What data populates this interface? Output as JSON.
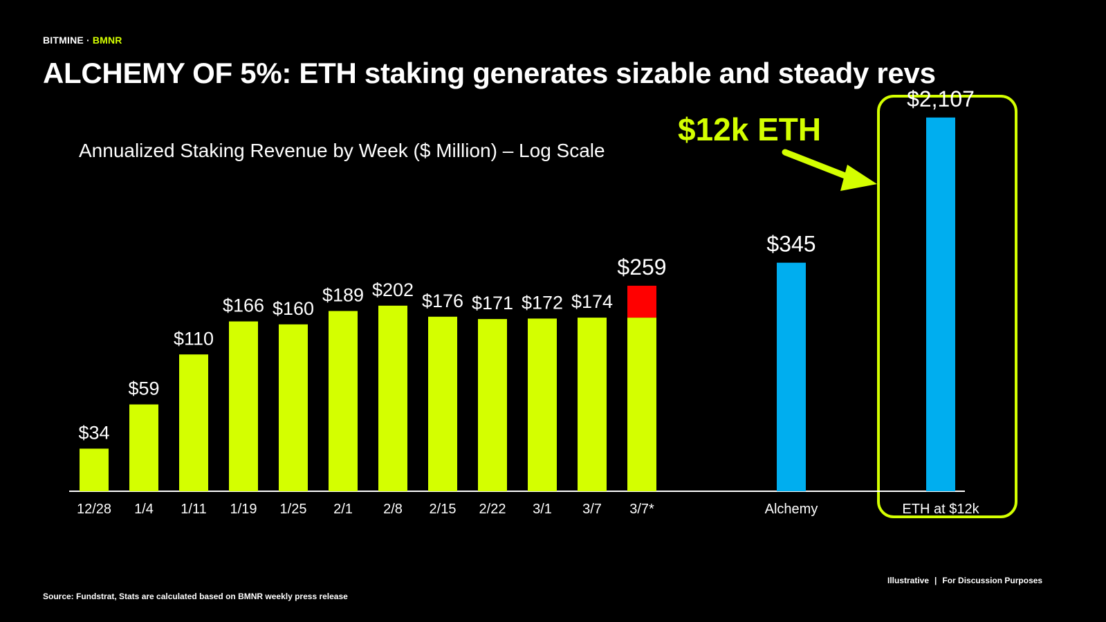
{
  "header": {
    "brand": "BITMINE",
    "separator": "·",
    "ticker": "BMNR",
    "title": "ALCHEMY OF 5%: ETH staking generates sizable and steady revs"
  },
  "callout": {
    "text": "$12k ETH"
  },
  "footer": {
    "source": "Source: Fundstrat, Stats are calculated based on BMNR weekly press release",
    "note_left": "Illustrative",
    "note_sep": "|",
    "note_right": "For Discussion Purposes"
  },
  "colors": {
    "weekly": "#d4ff00",
    "increment": "#ff0000",
    "projection": "#00aeef",
    "highlight": "#d4ff00"
  },
  "chart_data": {
    "type": "bar",
    "title": "Annualized Staking Revenue by Week ($ Million) – Log Scale",
    "scale": "log",
    "ylim": [
      20,
      2500
    ],
    "categories": [
      "12/28",
      "1/4",
      "1/11",
      "1/19",
      "1/25",
      "2/1",
      "2/8",
      "2/15",
      "2/22",
      "3/1",
      "3/7",
      "3/7*",
      "Alchemy",
      "ETH at $12k"
    ],
    "values": [
      34,
      59,
      110,
      166,
      160,
      189,
      202,
      176,
      171,
      172,
      174,
      259,
      345,
      2107
    ],
    "labels": [
      "$34",
      "$59",
      "$110",
      "$166",
      "$160",
      "$189",
      "$202",
      "$176",
      "$171",
      "$172",
      "$174",
      "$259",
      "$345",
      "$2,107"
    ],
    "stacked_base": {
      "category": "3/7*",
      "base": 174,
      "total": 259
    },
    "series_groups": [
      "weekly",
      "weekly",
      "weekly",
      "weekly",
      "weekly",
      "weekly",
      "weekly",
      "weekly",
      "weekly",
      "weekly",
      "weekly",
      "weekly",
      "projection",
      "projection"
    ],
    "highlighted": "ETH at $12k"
  }
}
